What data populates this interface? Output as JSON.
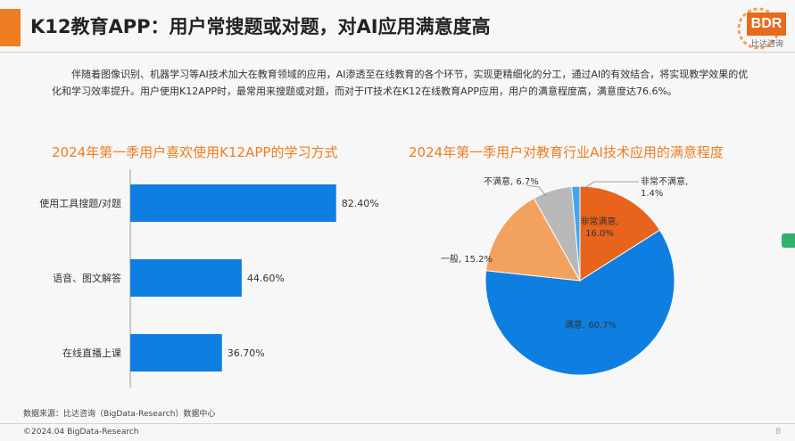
{
  "header": {
    "title": "K12教育APP：用户常搜题或对题，对AI应用满意度高",
    "accent_color": "#ef7d22"
  },
  "logo": {
    "text": "BDR",
    "subtext": "比达咨询",
    "color": "#e86a1d"
  },
  "intro": "伴随着图像识别、机器学习等AI技术加大在教育领域的应用，AI渗透至在线教育的各个环节，实现更精细化的分工，通过AI的有效结合，将实现教学效果的优化和学习效率提升。用户使用K12APP时，最常用来搜题或对题，而对于IT技术在K12在线教育APP应用，用户的满意程度高，满意度达76.6%。",
  "chart_data": [
    {
      "type": "bar",
      "orientation": "horizontal",
      "title": "2024年第一季用户喜欢使用K12APP的学习方式",
      "categories": [
        "使用工具搜题/对题",
        "语音、图文解答",
        "在线直播上课"
      ],
      "values": [
        82.4,
        44.6,
        36.7
      ],
      "value_labels": [
        "82.40%",
        "44.60%",
        "36.70%"
      ],
      "unit": "%",
      "color": "#0e7fe1",
      "grid": false,
      "legend": "none"
    },
    {
      "type": "pie",
      "title": "2024年第一季用户对教育行业AI技术应用的满意程度",
      "slices": [
        {
          "label": "非常满意",
          "value": 16.0,
          "label_text": "非常满意,\n16.0%",
          "color": "#e8631c"
        },
        {
          "label": "满意",
          "value": 60.7,
          "label_text": "满意, 60.7%",
          "color": "#0e7fe1"
        },
        {
          "label": "一般",
          "value": 15.2,
          "label_text": "一般, 15.2%",
          "color": "#f2a25e"
        },
        {
          "label": "不满意",
          "value": 6.7,
          "label_text": "不满意, 6.7%",
          "color": "#b8b8b8"
        },
        {
          "label": "非常不满意",
          "value": 1.4,
          "label_text": "非常不满意,\n1.4%",
          "color": "#4aa3e8"
        }
      ],
      "legend": "none"
    }
  ],
  "footer": {
    "source": "数据来源：比达咨询（BigData-Research）数据中心",
    "copyright": "©2024.04 BigData-Research",
    "page": "8"
  }
}
